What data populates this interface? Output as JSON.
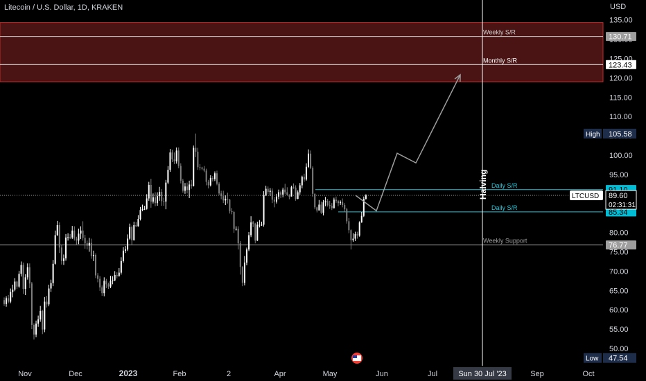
{
  "header": {
    "title": "Litecoin / U.S. Dollar, 1D, KRAKEN",
    "currency": "USD"
  },
  "chart_data": {
    "type": "candlestick",
    "y_axis": {
      "ticks": [
        50,
        55,
        60,
        65,
        70,
        75,
        80,
        85,
        90,
        95,
        100,
        105,
        110,
        115,
        120,
        125,
        130,
        135
      ],
      "tick_labels": [
        "50.00",
        "55.00",
        "60.00",
        "65.00",
        "70.00",
        "75.00",
        "80.00",
        "85.00",
        "90.00",
        "95.00",
        "100.00",
        "105.00",
        "110.00",
        "115.00",
        "120.00",
        "125.00",
        "130.00",
        "135.00"
      ],
      "range": [
        47.0,
        137.0
      ]
    },
    "x_axis": {
      "labels": [
        "Nov",
        "Dec",
        "2023",
        "Feb",
        "2",
        "Apr",
        "May",
        "Jun",
        "Jul",
        "Sep",
        "Oct"
      ],
      "bold_label": "2023",
      "cursor_label": "Sun 30 Jul '23"
    },
    "zones": [
      {
        "name": "resistance-zone",
        "from": 119.0,
        "to": 134.3,
        "color": "#4a1414",
        "border": "#c62828"
      }
    ],
    "levels": [
      {
        "label": "Weekly S/R",
        "value": 130.71,
        "tag": "130.71",
        "tag_color": "#9e9e9e",
        "line_color": "#d0d0d0"
      },
      {
        "label": "Monthly S/R",
        "value": 123.43,
        "tag": "123.43",
        "tag_color": "#ffffff",
        "line_color": "#ffffff"
      },
      {
        "label": "Daily S/R",
        "value": 91.08,
        "tag": "91.08",
        "tag_color": "#00bcd4",
        "line_color": "#26c6da"
      },
      {
        "label": "Daily S/R",
        "value": 85.32,
        "tag": "85.32",
        "tag_color": "#00bcd4",
        "line_color": "#26c6da"
      },
      {
        "label": "Weekly Support",
        "value": 76.77,
        "tag": "76.77",
        "tag_color": "#9e9e9e",
        "line_color": "#9e9e9e"
      }
    ],
    "extra_tags": [
      {
        "label": "91.10",
        "value": 91.1,
        "color": "#00bcd4"
      },
      {
        "label": "85.34",
        "value": 85.34,
        "color": "#00bcd4"
      }
    ],
    "high": {
      "label": "High",
      "value": 105.58
    },
    "low": {
      "label": "Low",
      "value": 47.54
    },
    "last_price": {
      "symbol": "LTCUSD",
      "value": 89.6,
      "price_label": "89.60",
      "countdown": "02:31:31"
    },
    "vertical_marker": {
      "label": "Halving",
      "date_label": "Sun 30 Jul '23"
    },
    "projection": [
      [
        513,
        89.6
      ],
      [
        543,
        85.6
      ],
      [
        573,
        100.5
      ],
      [
        600,
        98.0
      ],
      [
        664,
        120.8
      ]
    ],
    "candles": [
      [
        62.5,
        63.2,
        61.0,
        61.5
      ],
      [
        61.5,
        63.5,
        60.8,
        63.0
      ],
      [
        63.0,
        63.8,
        61.7,
        62.1
      ],
      [
        62.1,
        65.5,
        61.7,
        64.6
      ],
      [
        64.6,
        66.5,
        63.2,
        65.2
      ],
      [
        65.2,
        68.2,
        64.8,
        67.3
      ],
      [
        67.3,
        67.5,
        65.4,
        66.0
      ],
      [
        66.0,
        70.1,
        65.7,
        69.3
      ],
      [
        69.3,
        72.5,
        68.6,
        71.6
      ],
      [
        71.6,
        72.2,
        64.1,
        65.4
      ],
      [
        65.4,
        69.2,
        63.8,
        68.4
      ],
      [
        68.4,
        72.0,
        67.8,
        71.0
      ],
      [
        71.0,
        72.0,
        65.6,
        66.8
      ],
      [
        66.8,
        67.2,
        55.0,
        56.1
      ],
      [
        56.1,
        56.5,
        52.3,
        53.6
      ],
      [
        53.6,
        57.2,
        52.9,
        56.4
      ],
      [
        56.4,
        58.5,
        55.6,
        57.5
      ],
      [
        57.5,
        61.0,
        56.9,
        59.7
      ],
      [
        59.7,
        60.0,
        53.7,
        54.9
      ],
      [
        54.9,
        63.3,
        54.2,
        62.1
      ],
      [
        62.1,
        63.6,
        60.6,
        61.4
      ],
      [
        61.4,
        66.5,
        60.9,
        65.5
      ],
      [
        65.5,
        67.8,
        64.6,
        66.9
      ],
      [
        66.9,
        72.9,
        66.1,
        71.9
      ],
      [
        71.9,
        80.5,
        71.7,
        79.3
      ],
      [
        79.3,
        83.0,
        79.1,
        81.9
      ],
      [
        81.9,
        82.6,
        74.7,
        76.1
      ],
      [
        76.1,
        76.7,
        71.7,
        72.6
      ],
      [
        72.6,
        74.3,
        71.6,
        73.3
      ],
      [
        73.3,
        79.6,
        72.7,
        78.7
      ],
      [
        78.7,
        79.8,
        77.9,
        78.8
      ],
      [
        78.8,
        79.6,
        78.3,
        78.7
      ],
      [
        78.7,
        81.7,
        78.3,
        80.5
      ],
      [
        80.5,
        81.6,
        77.9,
        78.4
      ],
      [
        78.4,
        78.9,
        76.7,
        77.9
      ],
      [
        77.9,
        81.0,
        77.0,
        79.7
      ],
      [
        79.7,
        81.6,
        78.3,
        80.5
      ],
      [
        80.5,
        82.9,
        77.9,
        78.6
      ],
      [
        78.6,
        79.4,
        75.8,
        77.2
      ],
      [
        77.2,
        77.9,
        75.6,
        76.6
      ],
      [
        76.6,
        78.6,
        75.0,
        77.3
      ],
      [
        77.3,
        78.4,
        73.2,
        73.9
      ],
      [
        73.9,
        75.3,
        72.6,
        74.2
      ],
      [
        74.2,
        74.6,
        68.2,
        68.9
      ],
      [
        68.9,
        69.5,
        67.1,
        68.0
      ],
      [
        68.0,
        68.7,
        64.9,
        65.8
      ],
      [
        65.8,
        66.3,
        63.6,
        64.3
      ],
      [
        64.3,
        68.4,
        63.5,
        67.5
      ],
      [
        67.5,
        68.0,
        65.6,
        66.6
      ],
      [
        66.6,
        67.0,
        65.4,
        66.0
      ],
      [
        66.0,
        68.8,
        65.6,
        67.5
      ],
      [
        67.5,
        68.7,
        66.6,
        67.6
      ],
      [
        67.6,
        70.0,
        67.4,
        69.0
      ],
      [
        69.0,
        69.7,
        68.1,
        68.7
      ],
      [
        68.7,
        70.8,
        68.6,
        69.6
      ],
      [
        69.6,
        73.6,
        69.1,
        72.6
      ],
      [
        72.6,
        76.2,
        72.2,
        75.3
      ],
      [
        75.3,
        76.5,
        74.7,
        75.6
      ],
      [
        75.6,
        79.5,
        75.2,
        78.4
      ],
      [
        78.4,
        82.3,
        78.1,
        81.4
      ],
      [
        81.4,
        81.8,
        76.9,
        78.0
      ],
      [
        78.0,
        82.8,
        77.9,
        81.9
      ],
      [
        81.9,
        82.7,
        81.4,
        81.6
      ],
      [
        81.6,
        84.5,
        81.5,
        83.5
      ],
      [
        83.5,
        86.6,
        83.1,
        85.8
      ],
      [
        85.8,
        87.2,
        85.5,
        86.1
      ],
      [
        86.1,
        86.9,
        85.8,
        86.1
      ],
      [
        86.1,
        89.9,
        85.9,
        88.8
      ],
      [
        88.8,
        93.1,
        88.2,
        92.3
      ],
      [
        92.3,
        93.9,
        86.4,
        88.0
      ],
      [
        88.0,
        90.1,
        87.5,
        89.1
      ],
      [
        89.1,
        90.4,
        86.8,
        87.6
      ],
      [
        87.6,
        90.4,
        86.9,
        89.4
      ],
      [
        89.4,
        91.8,
        88.2,
        90.5
      ],
      [
        90.5,
        91.2,
        86.9,
        88.1
      ],
      [
        88.1,
        89.0,
        86.9,
        88.0
      ],
      [
        88.0,
        93.6,
        86.0,
        92.9
      ],
      [
        92.9,
        97.2,
        92.5,
        96.2
      ],
      [
        96.2,
        101.6,
        95.7,
        100.7
      ],
      [
        100.7,
        101.4,
        98.2,
        98.9
      ],
      [
        98.9,
        100.7,
        97.7,
        98.4
      ],
      [
        98.4,
        102.0,
        97.8,
        101.2
      ],
      [
        101.2,
        102.0,
        96.6,
        97.2
      ],
      [
        97.2,
        97.9,
        92.7,
        93.4
      ],
      [
        93.4,
        93.9,
        90.3,
        90.8
      ],
      [
        90.8,
        92.8,
        90.0,
        91.9
      ],
      [
        91.9,
        92.9,
        90.1,
        91.0
      ],
      [
        91.0,
        93.4,
        88.9,
        92.4
      ],
      [
        92.4,
        93.6,
        91.3,
        92.0
      ],
      [
        92.0,
        102.5,
        91.9,
        101.9
      ],
      [
        101.9,
        105.6,
        99.5,
        100.9
      ],
      [
        100.9,
        101.9,
        96.2,
        96.9
      ],
      [
        96.9,
        97.7,
        96.1,
        96.8
      ],
      [
        96.8,
        97.0,
        96.1,
        96.5
      ],
      [
        96.5,
        97.2,
        95.6,
        96.0
      ],
      [
        96.0,
        96.5,
        92.2,
        93.1
      ],
      [
        93.1,
        93.6,
        91.4,
        92.2
      ],
      [
        92.2,
        94.8,
        91.9,
        94.1
      ],
      [
        94.1,
        94.6,
        93.2,
        93.8
      ],
      [
        93.8,
        95.8,
        93.3,
        95.3
      ],
      [
        95.3,
        96.0,
        92.2,
        92.6
      ],
      [
        92.6,
        93.0,
        89.6,
        90.1
      ],
      [
        90.1,
        90.8,
        88.6,
        89.4
      ],
      [
        89.4,
        90.8,
        87.6,
        88.3
      ],
      [
        88.3,
        89.6,
        87.1,
        88.7
      ],
      [
        88.7,
        90.3,
        87.5,
        88.5
      ],
      [
        88.5,
        88.7,
        84.9,
        85.5
      ],
      [
        85.5,
        86.3,
        84.7,
        85.3
      ],
      [
        85.3,
        85.6,
        79.9,
        80.9
      ],
      [
        80.9,
        81.6,
        80.5,
        80.9
      ],
      [
        80.9,
        81.6,
        75.6,
        77.2
      ],
      [
        77.2,
        77.8,
        69.1,
        71.1
      ],
      [
        71.1,
        71.3,
        66.1,
        67.0
      ],
      [
        67.0,
        73.9,
        66.3,
        72.2
      ],
      [
        72.2,
        76.1,
        71.5,
        75.6
      ],
      [
        75.6,
        80.1,
        75.2,
        79.3
      ],
      [
        79.3,
        84.2,
        78.8,
        82.6
      ],
      [
        82.6,
        83.0,
        81.4,
        82.3
      ],
      [
        82.3,
        82.5,
        77.2,
        77.9
      ],
      [
        77.9,
        82.8,
        77.8,
        82.0
      ],
      [
        82.0,
        83.2,
        81.3,
        82.0
      ],
      [
        82.0,
        82.8,
        81.7,
        82.0
      ],
      [
        82.0,
        90.7,
        81.5,
        89.6
      ],
      [
        89.6,
        92.1,
        89.4,
        91.3
      ],
      [
        91.3,
        91.9,
        90.0,
        90.5
      ],
      [
        90.5,
        91.5,
        89.5,
        90.8
      ],
      [
        90.8,
        91.4,
        87.6,
        88.5
      ],
      [
        88.5,
        89.2,
        86.5,
        88.0
      ],
      [
        88.0,
        90.0,
        87.5,
        89.3
      ],
      [
        89.3,
        91.1,
        88.6,
        90.4
      ],
      [
        90.4,
        90.8,
        88.9,
        89.8
      ],
      [
        89.8,
        91.6,
        89.1,
        91.1
      ],
      [
        91.1,
        92.6,
        89.9,
        90.4
      ],
      [
        90.4,
        91.7,
        89.6,
        89.7
      ],
      [
        89.7,
        89.9,
        88.6,
        89.3
      ],
      [
        89.3,
        92.1,
        89.3,
        91.7
      ],
      [
        91.7,
        92.7,
        91.3,
        91.6
      ],
      [
        91.6,
        92.2,
        88.2,
        88.7
      ],
      [
        88.7,
        90.9,
        88.6,
        90.4
      ],
      [
        90.4,
        92.8,
        89.8,
        92.2
      ],
      [
        92.2,
        94.7,
        91.4,
        94.4
      ],
      [
        94.4,
        95.2,
        93.1,
        93.7
      ],
      [
        93.7,
        97.9,
        93.4,
        97.0
      ],
      [
        97.0,
        101.5,
        96.7,
        100.4
      ],
      [
        100.4,
        101.2,
        96.4,
        96.7
      ],
      [
        96.7,
        97.1,
        89.2,
        90.0
      ],
      [
        90.0,
        90.1,
        86.0,
        86.5
      ],
      [
        86.5,
        86.7,
        85.2,
        85.7
      ],
      [
        85.7,
        88.4,
        85.7,
        87.2
      ],
      [
        87.2,
        88.0,
        84.8,
        85.1
      ],
      [
        85.1,
        88.4,
        84.4,
        87.8
      ],
      [
        87.8,
        89.2,
        86.8,
        88.1
      ],
      [
        88.1,
        88.7,
        86.7,
        87.1
      ],
      [
        87.1,
        88.2,
        86.1,
        86.9
      ],
      [
        86.9,
        87.6,
        85.8,
        86.3
      ],
      [
        86.3,
        89.0,
        86.2,
        88.5
      ],
      [
        88.5,
        89.3,
        87.6,
        88.1
      ],
      [
        88.1,
        88.4,
        86.8,
        87.6
      ],
      [
        87.6,
        88.3,
        87.1,
        87.9
      ],
      [
        87.9,
        88.8,
        86.5,
        87.1
      ],
      [
        87.1,
        87.6,
        85.3,
        86.0
      ],
      [
        86.0,
        86.4,
        82.3,
        82.9
      ],
      [
        82.9,
        83.7,
        79.8,
        80.6
      ],
      [
        80.6,
        80.8,
        75.6,
        78.0
      ],
      [
        78.0,
        79.8,
        77.6,
        78.4
      ],
      [
        78.4,
        80.2,
        77.8,
        79.6
      ],
      [
        79.6,
        80.2,
        78.4,
        79.2
      ],
      [
        79.2,
        82.9,
        78.9,
        82.6
      ],
      [
        82.6,
        85.3,
        82.5,
        84.3
      ],
      [
        84.3,
        89.3,
        84.0,
        88.7
      ],
      [
        88.7,
        89.9,
        88.5,
        89.6
      ]
    ]
  },
  "colors": {
    "background": "#000000",
    "up": "#ffffff",
    "down": "#808080",
    "text": "#d1d4dc",
    "cursor_line": "#ffffff",
    "projection": "#9e9e9e",
    "high_low_tag": "#1e2d4a"
  }
}
